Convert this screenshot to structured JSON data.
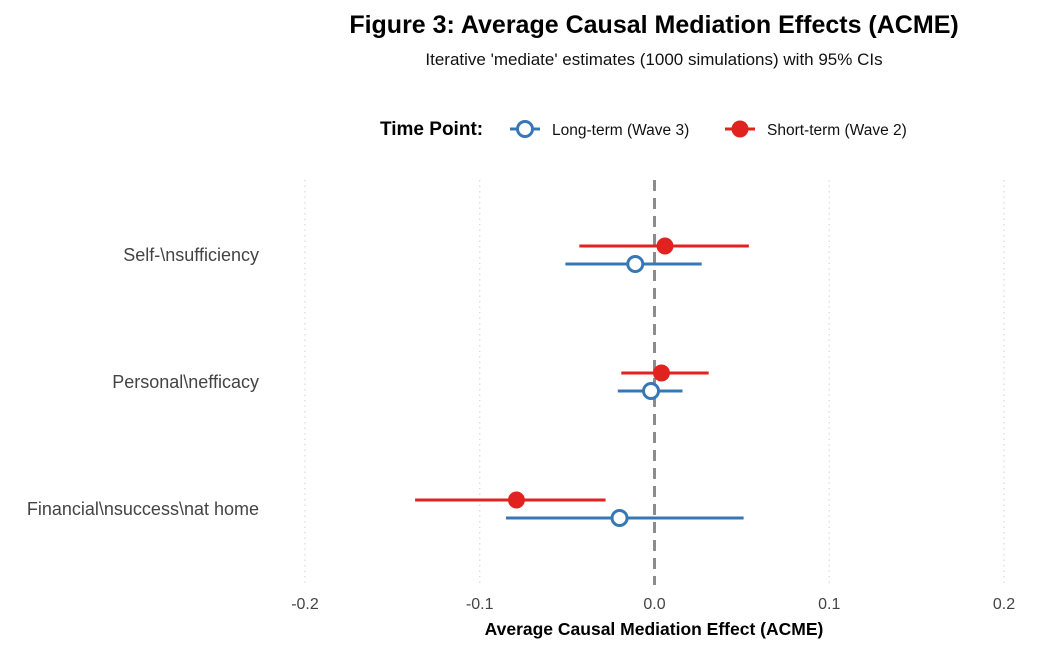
{
  "chart_data": {
    "type": "scatter",
    "title": "Figure 3: Average Causal Mediation Effects (ACME)",
    "subtitle": "Iterative 'mediate' estimates (1000 simulations) with 95% CIs",
    "xlabel": "Average Causal Mediation Effect (ACME)",
    "ylabel": "",
    "xlim": [
      -0.2,
      0.2
    ],
    "x_ticks": [
      -0.2,
      -0.1,
      0.0,
      0.1,
      0.2
    ],
    "x_tick_labels": [
      "-0.2",
      "-0.1",
      "0.0",
      "0.1",
      "0.2"
    ],
    "reference_line": 0,
    "grid": "vertical dotted",
    "legend": {
      "title": "Time Point:",
      "placement": "top"
    },
    "categories": [
      "Self-\\nsufficiency",
      "Personal\\nefficacy",
      "Financial\\nsuccess\\nat home"
    ],
    "series": [
      {
        "name": "Long-term (Wave 3)",
        "color": "#3778b4",
        "marker": "open-circle",
        "points": [
          {
            "estimate": -0.011,
            "lower": -0.051,
            "upper": 0.027
          },
          {
            "estimate": -0.002,
            "lower": -0.021,
            "upper": 0.016
          },
          {
            "estimate": -0.02,
            "lower": -0.085,
            "upper": 0.051
          }
        ]
      },
      {
        "name": "Short-term (Wave 2)",
        "color": "#e1231f",
        "marker": "filled-circle",
        "points": [
          {
            "estimate": 0.006,
            "lower": -0.043,
            "upper": 0.054
          },
          {
            "estimate": 0.004,
            "lower": -0.019,
            "upper": 0.031
          },
          {
            "estimate": -0.079,
            "lower": -0.137,
            "upper": -0.028
          }
        ]
      }
    ]
  }
}
